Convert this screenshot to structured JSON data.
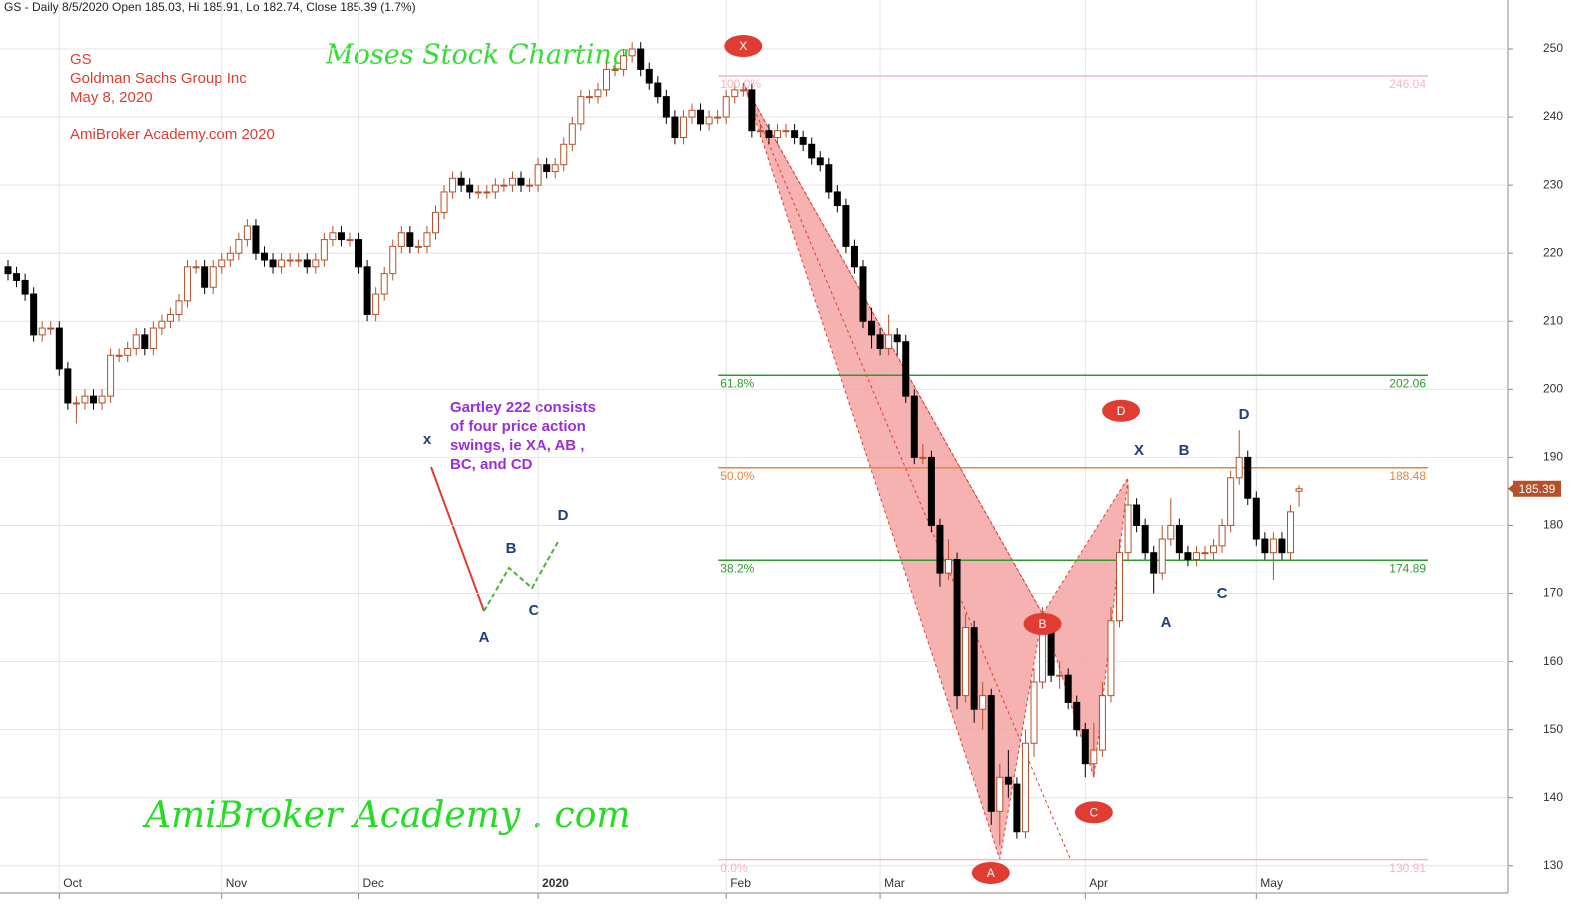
{
  "chart_data": {
    "type": "candlestick",
    "header": "GS - Daily 8/5/2020 Open 185.03, Hi 185.91, Lo 182.74, Close 185.39 (1.7%)",
    "annotations": [
      "GS",
      "Goldman Sachs Group Inc",
      "May 8, 2020",
      "AmiBroker Academy.com  2020"
    ],
    "watermark_top": "Moses Stock Charting",
    "watermark_bottom": "AmiBroker Academy . com",
    "note": [
      "Gartley 222 consists",
      "of four price action",
      "swings, ie XA, AB ,",
      "BC, and CD"
    ],
    "illustration_labels": [
      "x",
      "A",
      "B",
      "C",
      "D"
    ],
    "pattern_labels": [
      "X",
      "B",
      "D",
      "A",
      "C"
    ],
    "categories": [
      null,
      null,
      null,
      null,
      null,
      null,
      "Oct",
      null,
      null,
      null,
      null,
      null,
      null,
      null,
      null,
      null,
      null,
      null,
      null,
      null,
      null,
      null,
      null,
      null,
      null,
      "Nov",
      null,
      null,
      null,
      null,
      null,
      null,
      null,
      null,
      null,
      null,
      null,
      null,
      null,
      null,
      null,
      "Dec",
      null,
      null,
      null,
      null,
      null,
      null,
      null,
      null,
      null,
      null,
      null,
      null,
      null,
      null,
      null,
      null,
      null,
      null,
      null,
      null,
      "2020",
      null,
      null,
      null,
      null,
      null,
      null,
      null,
      null,
      null,
      null,
      null,
      null,
      null,
      null,
      null,
      null,
      null,
      null,
      null,
      null,
      null,
      "Feb",
      null,
      null,
      null,
      null,
      null,
      null,
      null,
      null,
      null,
      null,
      null,
      null,
      null,
      null,
      null,
      null,
      null,
      "Mar",
      null,
      null,
      null,
      null,
      null,
      null,
      null,
      null,
      null,
      null,
      null,
      null,
      null,
      null,
      null,
      null,
      null,
      null,
      null,
      null,
      null,
      null,
      null,
      "Apr",
      null,
      null,
      null,
      null,
      null,
      null,
      null,
      null,
      null,
      null,
      null,
      null,
      null,
      null,
      null,
      null,
      null,
      null,
      null,
      "May",
      null,
      null,
      null,
      null,
      null
    ],
    "open": [
      218,
      217,
      216,
      214,
      208,
      209,
      209,
      203,
      198,
      198,
      199,
      198,
      199,
      205,
      205,
      206,
      208,
      206,
      209,
      210,
      211,
      213,
      218,
      218,
      215,
      218,
      219,
      220,
      222,
      224,
      220,
      219,
      218,
      219,
      219,
      219,
      218,
      219,
      222,
      223,
      222,
      222,
      218,
      211,
      214,
      217,
      221,
      223,
      221,
      221,
      223,
      226,
      229,
      231,
      230,
      229,
      229,
      229,
      230,
      230,
      231,
      230,
      230,
      233,
      232,
      233,
      236,
      239,
      243,
      243,
      244,
      247,
      247,
      249,
      250,
      247,
      245,
      243,
      240,
      237,
      240,
      241,
      239,
      240,
      240,
      243,
      244,
      244,
      238,
      238,
      237,
      238,
      238,
      237,
      236,
      234,
      233,
      229,
      227,
      221,
      218,
      210,
      208,
      206,
      208,
      207,
      199,
      190,
      190,
      180,
      173,
      175,
      155,
      165,
      153,
      155,
      138,
      143,
      142,
      135,
      148,
      157,
      166,
      158,
      158,
      154,
      150,
      145,
      147,
      155,
      166,
      176,
      183,
      180,
      176,
      173,
      178,
      180,
      176,
      175,
      176,
      176,
      177,
      180,
      187,
      190,
      184,
      178,
      176,
      178,
      176,
      185.03
    ],
    "high": [
      219,
      218,
      217,
      215,
      210,
      210,
      210,
      204,
      199,
      200,
      200,
      200,
      206,
      206,
      207,
      209,
      209,
      210,
      211,
      212,
      214,
      219,
      219,
      219,
      219,
      220,
      221,
      223,
      225,
      225,
      221,
      220,
      220,
      220,
      220,
      220,
      220,
      223,
      224,
      224,
      223,
      223,
      219,
      215,
      218,
      222,
      224,
      224,
      222,
      224,
      227,
      230,
      232,
      232,
      231,
      230,
      230,
      231,
      231,
      232,
      232,
      231,
      234,
      234,
      234,
      237,
      240,
      244,
      244,
      245,
      248,
      248,
      250,
      251,
      251,
      248,
      246,
      244,
      241,
      241,
      242,
      242,
      241,
      241,
      244,
      245,
      245,
      245,
      239,
      239,
      239,
      239,
      239,
      238,
      237,
      235,
      234,
      230,
      228,
      222,
      219,
      212,
      209,
      211,
      209,
      208,
      200,
      192,
      191,
      181,
      178,
      176,
      167,
      166,
      157,
      156,
      145,
      147,
      143,
      150,
      159,
      168,
      167,
      160,
      159,
      155,
      151,
      151,
      157,
      168,
      178,
      186,
      184,
      181,
      177,
      180,
      184,
      181,
      177,
      177,
      177,
      178,
      181,
      188,
      194,
      191,
      185,
      179,
      179,
      179,
      183,
      185.91
    ],
    "low": [
      216,
      215,
      213,
      207,
      207,
      208,
      202,
      197,
      195,
      197,
      197,
      197,
      198,
      204,
      204,
      205,
      205,
      205,
      208,
      209,
      210,
      212,
      217,
      214,
      214,
      217,
      218,
      219,
      221,
      219,
      218,
      217,
      217,
      218,
      218,
      217,
      217,
      218,
      221,
      221,
      221,
      217,
      210,
      210,
      213,
      216,
      220,
      220,
      220,
      220,
      222,
      225,
      228,
      229,
      228,
      228,
      228,
      228,
      229,
      229,
      229,
      229,
      229,
      231,
      231,
      232,
      235,
      238,
      242,
      242,
      243,
      246,
      246,
      248,
      246,
      244,
      242,
      239,
      236,
      236,
      239,
      238,
      238,
      239,
      239,
      242,
      243,
      237,
      237,
      236,
      236,
      237,
      236,
      235,
      233,
      232,
      228,
      226,
      220,
      217,
      209,
      206,
      205,
      205,
      205,
      198,
      189,
      189,
      179,
      171,
      172,
      153,
      154,
      151,
      150,
      136,
      133,
      140,
      134,
      134,
      146,
      156,
      157,
      156,
      153,
      149,
      143,
      143,
      146,
      154,
      165,
      175,
      179,
      175,
      170,
      172,
      177,
      175,
      174,
      174,
      175,
      175,
      176,
      179,
      186,
      183,
      177,
      175,
      172,
      175,
      175,
      182.74
    ],
    "close": [
      217,
      216,
      214,
      208,
      209,
      209,
      203,
      198,
      198,
      199,
      198,
      199,
      205,
      205,
      206,
      208,
      206,
      209,
      210,
      211,
      213,
      218,
      218,
      215,
      218,
      219,
      220,
      222,
      224,
      220,
      219,
      218,
      219,
      219,
      219,
      218,
      219,
      222,
      223,
      222,
      222,
      218,
      211,
      214,
      217,
      221,
      223,
      221,
      221,
      223,
      226,
      229,
      231,
      230,
      229,
      229,
      229,
      230,
      230,
      231,
      230,
      230,
      233,
      232,
      233,
      236,
      239,
      243,
      243,
      244,
      247,
      247,
      249,
      250,
      247,
      245,
      243,
      240,
      237,
      240,
      241,
      239,
      240,
      240,
      243,
      244,
      244,
      238,
      238,
      237,
      238,
      238,
      237,
      236,
      234,
      233,
      229,
      227,
      221,
      218,
      210,
      208,
      206,
      208,
      207,
      199,
      190,
      190,
      180,
      173,
      175,
      155,
      165,
      153,
      155,
      138,
      143,
      142,
      135,
      148,
      157,
      166,
      158,
      158,
      154,
      150,
      145,
      147,
      155,
      166,
      176,
      183,
      180,
      176,
      173,
      178,
      180,
      176,
      175,
      176,
      176,
      177,
      180,
      187,
      190,
      184,
      178,
      176,
      178,
      176,
      182,
      185.39
    ],
    "up_color": "#ffffff",
    "down_color": "#000000",
    "edge_color": "#b5502a",
    "levels": [
      {
        "label": "100.0%",
        "value": 246.04,
        "color": "#f4b6c2"
      },
      {
        "label": "61.8%",
        "value": 202.06,
        "color": "#2e9a2e"
      },
      {
        "label": "50.0%",
        "value": 188.48,
        "color": "#e8843c"
      },
      {
        "label": "38.2%",
        "value": 174.89,
        "color": "#2e9a2e"
      },
      {
        "label": "0.0%",
        "value": 130.91,
        "color": "#f4b6c2"
      }
    ],
    "pattern": {
      "color": "#f4a3a3",
      "edge": "#e03c31",
      "points": [
        {
          "label": "X",
          "value": 245
        },
        {
          "label": "A",
          "value": 131
        },
        {
          "label": "B",
          "value": 167
        },
        {
          "label": "C",
          "value": 143
        },
        {
          "label": "D",
          "value": 187
        }
      ]
    },
    "ylim": [
      126,
      257.2
    ],
    "yticks": [
      130,
      140,
      150,
      160,
      170,
      180,
      190,
      200,
      210,
      220,
      230,
      240,
      250
    ],
    "grid": true
  }
}
